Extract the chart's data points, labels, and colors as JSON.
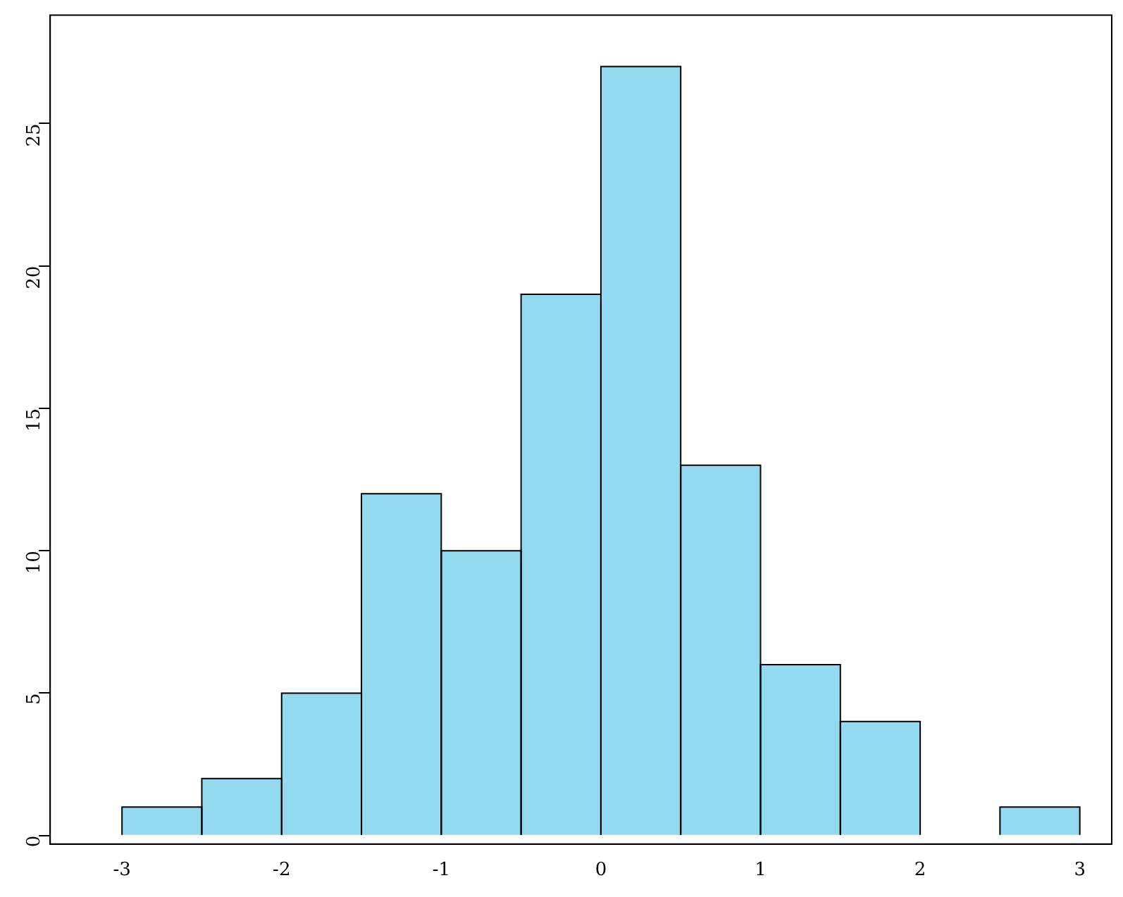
{
  "chart_data": {
    "type": "histogram",
    "bins": [
      -3,
      -2.5,
      -2,
      -1.5,
      -1,
      -0.5,
      0,
      0.5,
      1,
      1.5,
      2,
      2.5,
      3
    ],
    "values": [
      1,
      2,
      5,
      12,
      10,
      19,
      27,
      13,
      6,
      4,
      0,
      1
    ],
    "color": "#93d9f0",
    "xlim": [
      -3.45,
      3.2
    ],
    "xticks": [
      -3,
      -2,
      -1,
      0,
      1,
      2,
      3
    ],
    "ylim": [
      -0.3,
      28.8
    ],
    "yticks": [
      0,
      5,
      10,
      15,
      20,
      25
    ],
    "grid": false,
    "legend": false
  }
}
